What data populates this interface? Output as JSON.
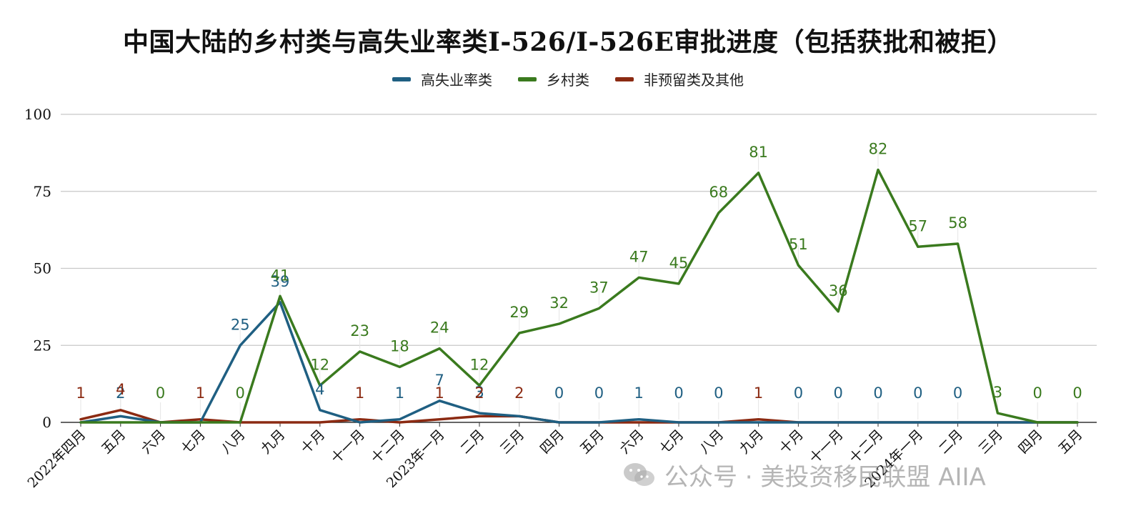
{
  "chart_data": {
    "type": "line",
    "title": "中国大陆的乡村类与高失业率类I-526/I-526E审批进度（包括获批和被拒）",
    "categories": [
      "2022年四月",
      "五月",
      "六月",
      "七月",
      "八月",
      "九月",
      "十月",
      "十一月",
      "十二月",
      "2023年一月",
      "二月",
      "三月",
      "四月",
      "五月",
      "六月",
      "七月",
      "八月",
      "九月",
      "十月",
      "十一月",
      "十二月",
      "2024年一月",
      "二月",
      "三月",
      "四月",
      "五月"
    ],
    "ylim": [
      0,
      100
    ],
    "yticks": [
      0,
      25,
      50,
      75,
      100
    ],
    "xlabel": "",
    "ylabel": "",
    "grid": true,
    "legend_position": "top-center",
    "series": [
      {
        "name": "高失业率类",
        "color": "#1f5f82",
        "values": [
          0,
          2,
          0,
          0,
          25,
          39,
          4,
          0,
          1,
          7,
          3,
          2,
          0,
          0,
          1,
          0,
          0,
          0,
          0,
          0,
          0,
          0,
          0,
          0,
          0,
          0
        ],
        "labels": [
          null,
          "2",
          null,
          null,
          "25",
          "39",
          "4",
          null,
          "1",
          "7",
          "3",
          null,
          "0",
          "0",
          "1",
          "0",
          "0",
          null,
          "0",
          "0",
          "0",
          "0",
          "0",
          null,
          null,
          null
        ]
      },
      {
        "name": "乡村类",
        "color": "#3a7a1e",
        "values": [
          0,
          0,
          0,
          0,
          0,
          41,
          12,
          23,
          18,
          24,
          12,
          29,
          32,
          37,
          47,
          45,
          68,
          81,
          51,
          36,
          82,
          57,
          58,
          3,
          0,
          0
        ],
        "labels": [
          null,
          null,
          "0",
          null,
          "0",
          "41",
          "12",
          "23",
          "18",
          "24",
          "12",
          "29",
          "32",
          "37",
          "47",
          "45",
          "68",
          "81",
          "51",
          "36",
          "82",
          "57",
          "58",
          "3",
          "0",
          "0"
        ]
      },
      {
        "name": "非预留类及其他",
        "color": "#8b2a12",
        "values": [
          1,
          4,
          0,
          1,
          0,
          0,
          0,
          1,
          0,
          1,
          2,
          2,
          0,
          0,
          0,
          0,
          0,
          1,
          0,
          0,
          0,
          0,
          0,
          0,
          0,
          0
        ],
        "labels": [
          "1",
          "4",
          null,
          "1",
          null,
          null,
          null,
          "1",
          null,
          "1",
          "2",
          "2",
          null,
          null,
          null,
          null,
          null,
          "1",
          null,
          null,
          null,
          null,
          null,
          null,
          null,
          null
        ]
      }
    ]
  },
  "watermark": {
    "text": "公众号 · 美投资移民联盟 AIIA",
    "icon": "wechat-icon"
  }
}
